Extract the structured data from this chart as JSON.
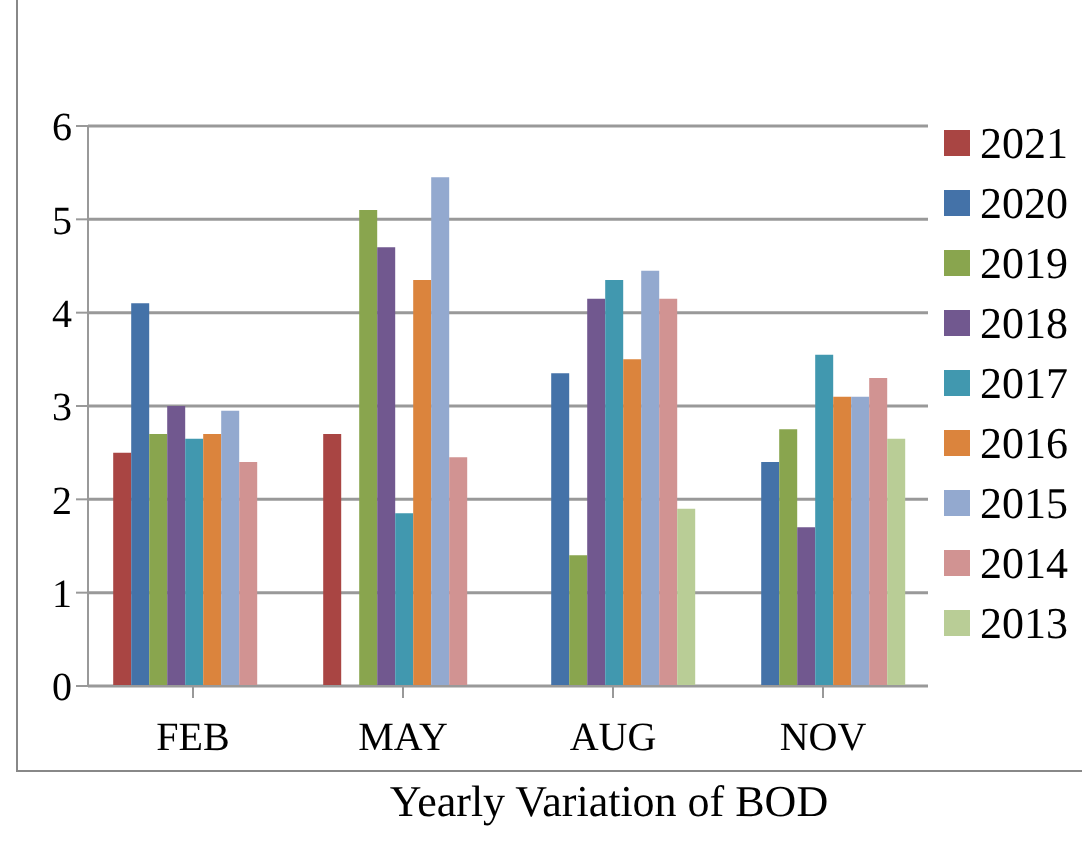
{
  "chart_data": {
    "type": "bar",
    "title": "Yearly Variation of BOD",
    "categories": [
      "FEB",
      "MAY",
      "AUG",
      "NOV"
    ],
    "series": [
      {
        "name": "2021",
        "color": "#a94543",
        "values": [
          2.5,
          2.7,
          null,
          null
        ]
      },
      {
        "name": "2020",
        "color": "#4472a8",
        "values": [
          4.1,
          null,
          3.35,
          2.4
        ]
      },
      {
        "name": "2019",
        "color": "#89a54e",
        "values": [
          2.7,
          5.1,
          1.4,
          2.75
        ]
      },
      {
        "name": "2018",
        "color": "#71588f",
        "values": [
          3.0,
          4.7,
          4.15,
          1.7
        ]
      },
      {
        "name": "2017",
        "color": "#4198af",
        "values": [
          2.65,
          1.85,
          4.35,
          3.55
        ]
      },
      {
        "name": "2016",
        "color": "#db843d",
        "values": [
          2.7,
          4.35,
          3.5,
          3.1
        ]
      },
      {
        "name": "2015",
        "color": "#93a9cf",
        "values": [
          2.95,
          5.45,
          4.45,
          3.1
        ]
      },
      {
        "name": "2014",
        "color": "#d19392",
        "values": [
          2.4,
          2.45,
          4.15,
          3.3
        ]
      },
      {
        "name": "2013",
        "color": "#b9cd96",
        "values": [
          null,
          null,
          1.9,
          2.65
        ]
      }
    ],
    "ylim": [
      0,
      6
    ],
    "yticks": [
      0,
      1,
      2,
      3,
      4,
      5,
      6
    ],
    "grid": "y",
    "legend": "right"
  }
}
